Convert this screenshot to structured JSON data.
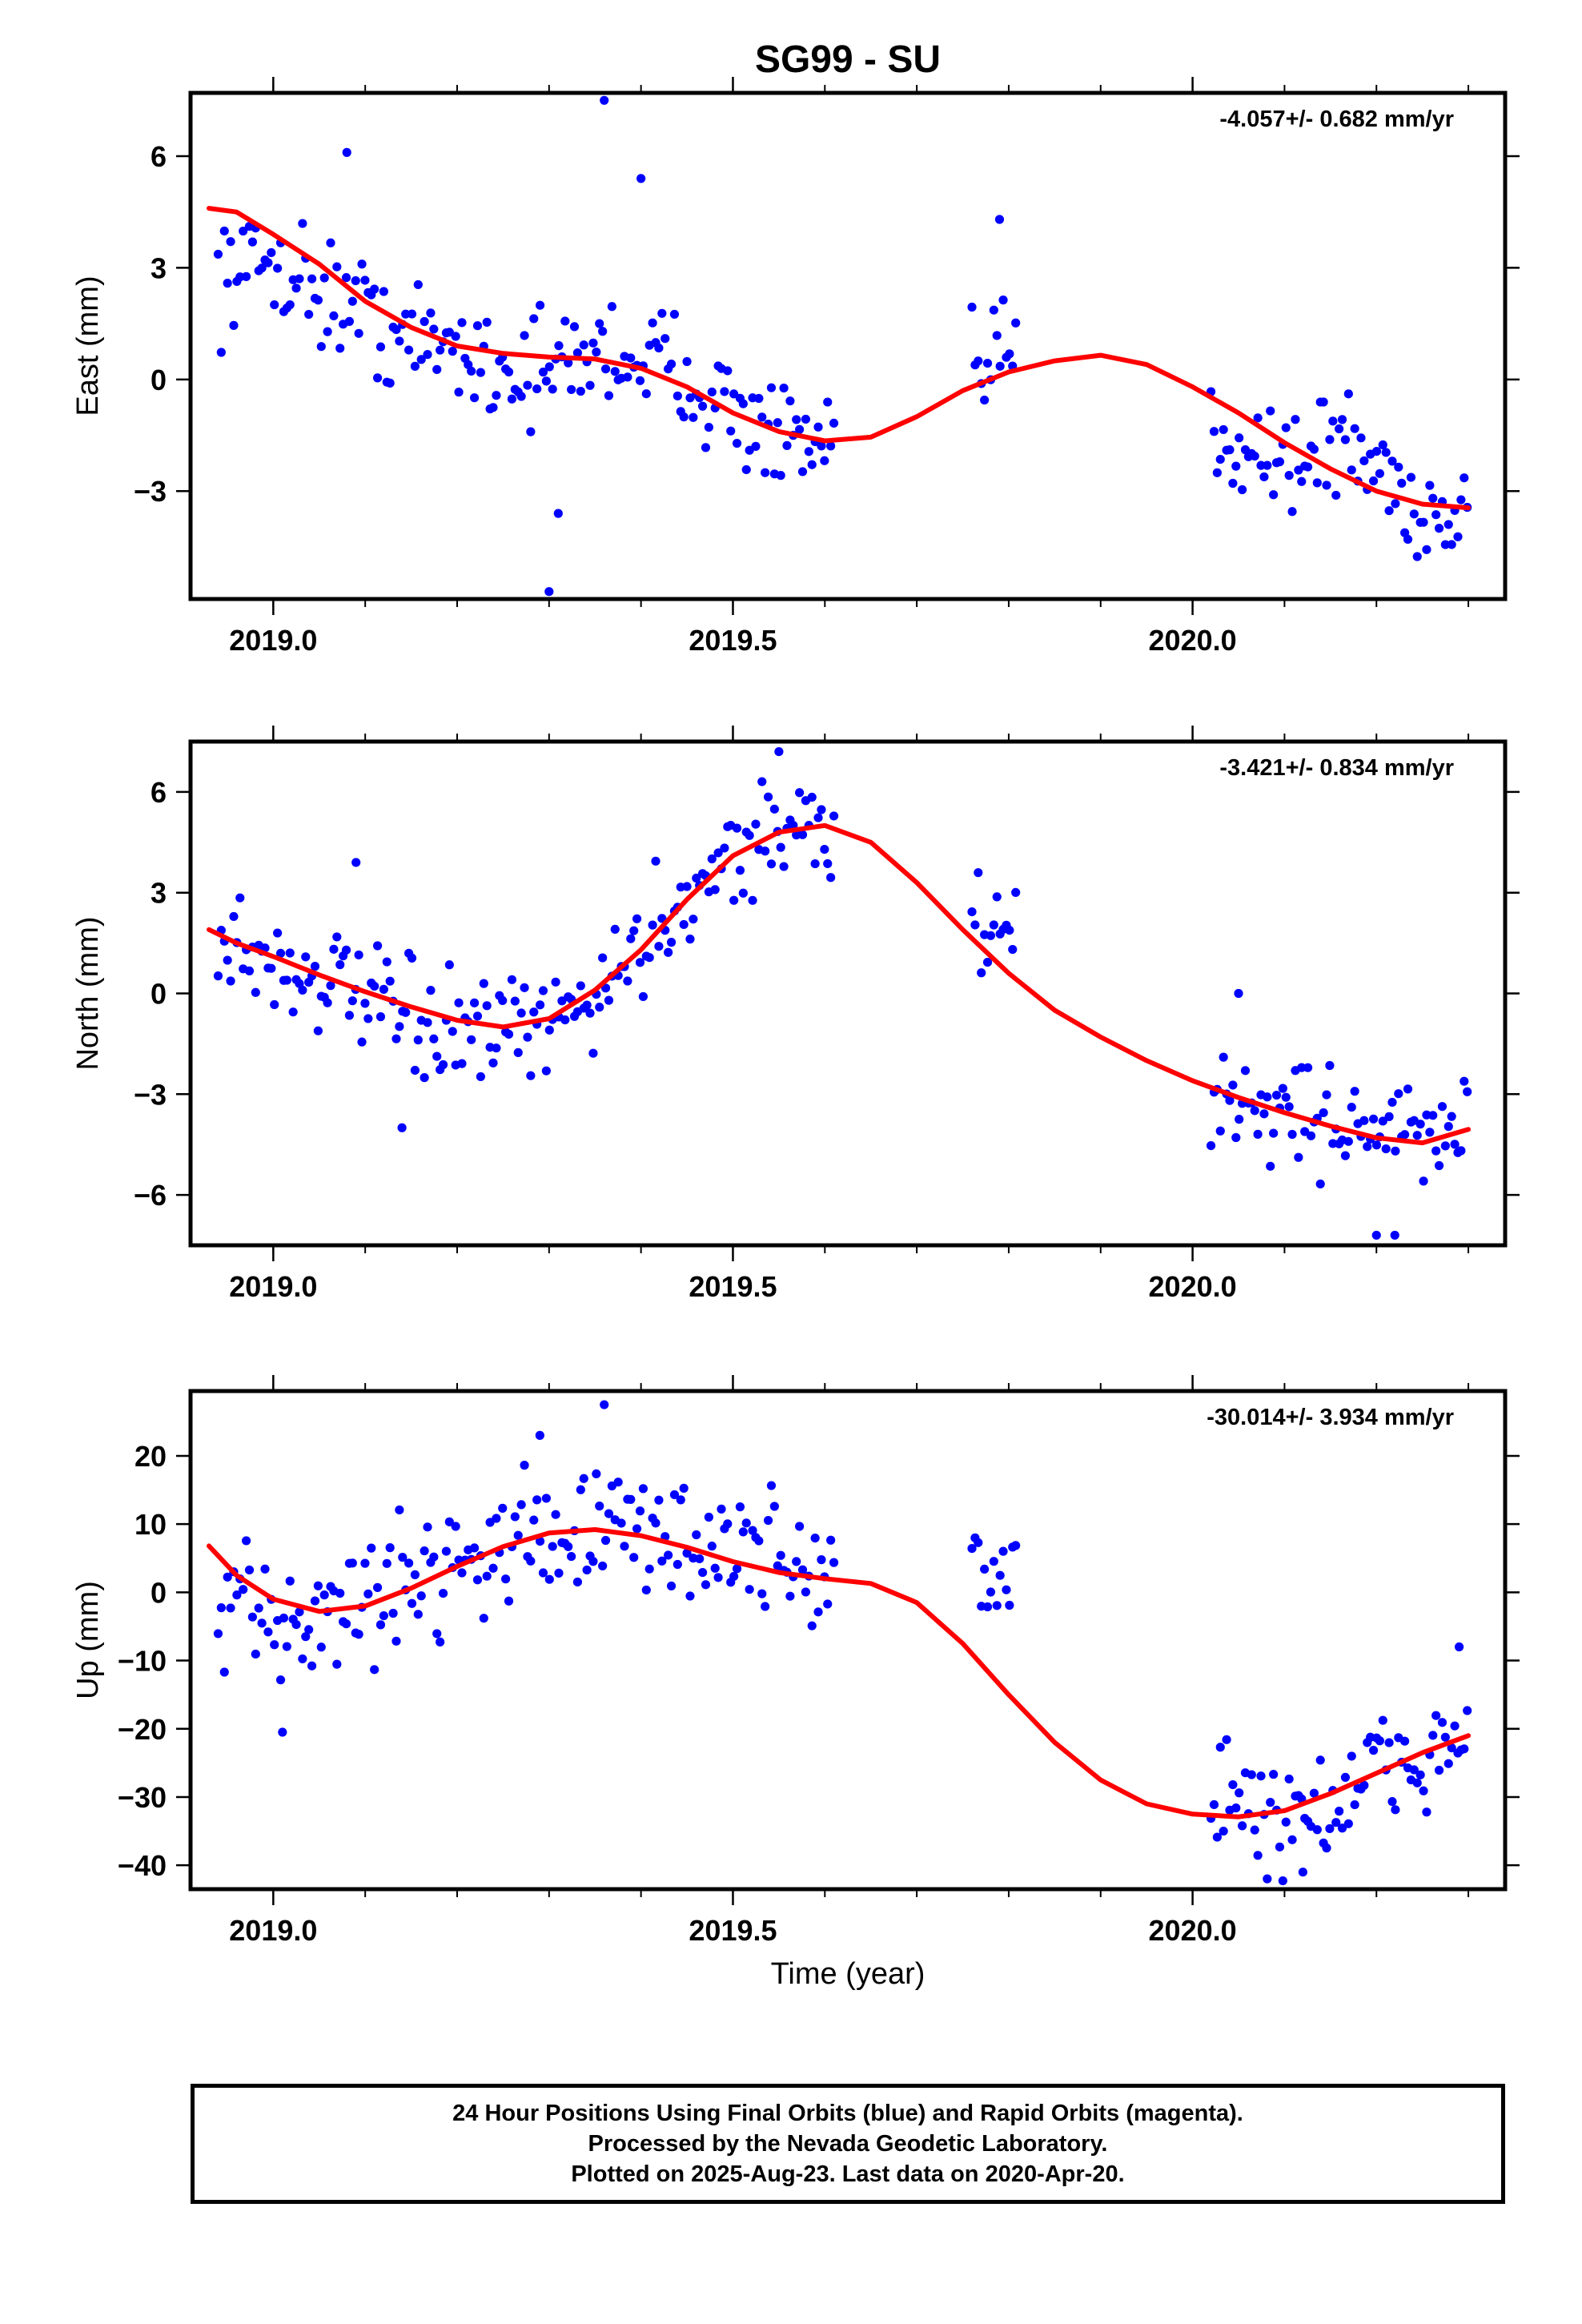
{
  "figure": {
    "title": "SG99 - SU",
    "xlabel": "Time (year)"
  },
  "colors": {
    "data_points": "#0000ff",
    "fit_line": "#ff0000",
    "axes": "#000000"
  },
  "caption": {
    "line1": "24 Hour Positions Using Final Orbits (blue) and Rapid Orbits (magenta).",
    "line2": "Processed by the Nevada Geodetic Laboratory.",
    "line3": "Plotted on 2025-Aug-23. Last data on 2020-Apr-20."
  },
  "chart_data": [
    {
      "type": "scatter",
      "name": "east",
      "ylabel": "East (mm)",
      "rate_label": "-4.057+/- 0.682 mm/yr",
      "xlim": [
        2018.91,
        2020.34
      ],
      "ylim": [
        -5.9,
        7.7
      ],
      "xticks": [
        2019.0,
        2019.5,
        2020.0
      ],
      "xticklabels": [
        "2019.0",
        "2019.5",
        "2020.0"
      ],
      "yticks": [
        -3,
        0,
        3,
        6
      ],
      "yticklabels": [
        "−3",
        "0",
        "3",
        "6"
      ],
      "anchors": [
        [
          2018.94,
          2.8
        ],
        [
          2019.0,
          3.2
        ],
        [
          2019.05,
          2.4
        ],
        [
          2019.1,
          1.8
        ],
        [
          2019.15,
          1.0
        ],
        [
          2019.2,
          0.9
        ],
        [
          2019.25,
          0.3
        ],
        [
          2019.3,
          0.2
        ],
        [
          2019.35,
          0.8
        ],
        [
          2019.4,
          0.6
        ],
        [
          2019.45,
          0.2
        ],
        [
          2019.5,
          -0.9
        ],
        [
          2019.55,
          -1.6
        ],
        [
          2019.6,
          -2.1
        ],
        [
          2019.76,
          0.0
        ],
        [
          2019.8,
          0.8
        ],
        [
          2020.02,
          -1.3
        ],
        [
          2020.08,
          -1.9
        ],
        [
          2020.12,
          -2.2
        ],
        [
          2020.16,
          -1.6
        ],
        [
          2020.2,
          -2.4
        ],
        [
          2020.25,
          -3.6
        ],
        [
          2020.3,
          -3.7
        ]
      ],
      "segments": [
        [
          2018.94,
          2019.61
        ],
        [
          2019.76,
          2019.81
        ],
        [
          2020.02,
          2020.3
        ]
      ],
      "spread": 1.3,
      "outliers": [
        [
          2019.3,
          -5.7
        ],
        [
          2019.36,
          7.5
        ],
        [
          2019.4,
          5.4
        ],
        [
          2019.08,
          6.1
        ],
        [
          2019.31,
          -3.6
        ],
        [
          2019.79,
          4.3
        ]
      ],
      "fit": [
        [
          2018.93,
          4.6
        ],
        [
          2018.96,
          4.5
        ],
        [
          2019.0,
          3.9
        ],
        [
          2019.05,
          3.1
        ],
        [
          2019.1,
          2.1
        ],
        [
          2019.15,
          1.4
        ],
        [
          2019.2,
          0.9
        ],
        [
          2019.25,
          0.7
        ],
        [
          2019.3,
          0.6
        ],
        [
          2019.35,
          0.55
        ],
        [
          2019.4,
          0.3
        ],
        [
          2019.45,
          -0.2
        ],
        [
          2019.5,
          -0.9
        ],
        [
          2019.55,
          -1.4
        ],
        [
          2019.6,
          -1.65
        ],
        [
          2019.65,
          -1.55
        ],
        [
          2019.7,
          -1.0
        ],
        [
          2019.75,
          -0.3
        ],
        [
          2019.8,
          0.2
        ],
        [
          2019.85,
          0.5
        ],
        [
          2019.9,
          0.65
        ],
        [
          2019.95,
          0.4
        ],
        [
          2020.0,
          -0.2
        ],
        [
          2020.05,
          -0.9
        ],
        [
          2020.1,
          -1.7
        ],
        [
          2020.15,
          -2.4
        ],
        [
          2020.2,
          -3.0
        ],
        [
          2020.25,
          -3.35
        ],
        [
          2020.3,
          -3.45
        ]
      ]
    },
    {
      "type": "scatter",
      "name": "north",
      "ylabel": "North (mm)",
      "rate_label": "-3.421+/- 0.834 mm/yr",
      "xlim": [
        2018.91,
        2020.34
      ],
      "ylim": [
        -7.5,
        7.5
      ],
      "xticks": [
        2019.0,
        2019.5,
        2020.0
      ],
      "xticklabels": [
        "2019.0",
        "2019.5",
        "2020.0"
      ],
      "yticks": [
        -6,
        -3,
        0,
        3,
        6
      ],
      "yticklabels": [
        "−6",
        "−3",
        "0",
        "3",
        "6"
      ],
      "anchors": [
        [
          2018.94,
          1.8
        ],
        [
          2019.0,
          0.8
        ],
        [
          2019.05,
          0.5
        ],
        [
          2019.1,
          -0.2
        ],
        [
          2019.15,
          -0.9
        ],
        [
          2019.2,
          -1.2
        ],
        [
          2019.25,
          -1.3
        ],
        [
          2019.3,
          -1.0
        ],
        [
          2019.35,
          0.0
        ],
        [
          2019.4,
          1.4
        ],
        [
          2019.45,
          3.0
        ],
        [
          2019.5,
          4.2
        ],
        [
          2019.55,
          4.9
        ],
        [
          2019.6,
          4.8
        ],
        [
          2019.76,
          2.0
        ],
        [
          2019.8,
          1.5
        ],
        [
          2020.02,
          -3.0
        ],
        [
          2020.08,
          -3.4
        ],
        [
          2020.12,
          -3.6
        ],
        [
          2020.16,
          -3.8
        ],
        [
          2020.2,
          -3.9
        ],
        [
          2020.25,
          -4.4
        ],
        [
          2020.3,
          -4.0
        ]
      ],
      "segments": [
        [
          2018.94,
          2019.61
        ],
        [
          2019.76,
          2019.81
        ],
        [
          2020.02,
          2020.3
        ]
      ],
      "spread": 1.4,
      "outliers": [
        [
          2019.09,
          3.9
        ],
        [
          2019.55,
          7.2
        ],
        [
          2020.2,
          -7.2
        ],
        [
          2020.22,
          -7.2
        ],
        [
          2019.14,
          -4.0
        ],
        [
          2020.05,
          0.0
        ]
      ],
      "fit": [
        [
          2018.93,
          1.9
        ],
        [
          2018.96,
          1.5
        ],
        [
          2019.0,
          1.1
        ],
        [
          2019.05,
          0.55
        ],
        [
          2019.1,
          0.05
        ],
        [
          2019.15,
          -0.4
        ],
        [
          2019.2,
          -0.8
        ],
        [
          2019.25,
          -1.0
        ],
        [
          2019.3,
          -0.75
        ],
        [
          2019.35,
          0.1
        ],
        [
          2019.4,
          1.3
        ],
        [
          2019.45,
          2.8
        ],
        [
          2019.5,
          4.1
        ],
        [
          2019.55,
          4.8
        ],
        [
          2019.6,
          5.0
        ],
        [
          2019.65,
          4.5
        ],
        [
          2019.7,
          3.3
        ],
        [
          2019.75,
          1.9
        ],
        [
          2019.8,
          0.6
        ],
        [
          2019.85,
          -0.5
        ],
        [
          2019.9,
          -1.3
        ],
        [
          2019.95,
          -2.0
        ],
        [
          2020.0,
          -2.6
        ],
        [
          2020.05,
          -3.1
        ],
        [
          2020.1,
          -3.55
        ],
        [
          2020.15,
          -3.95
        ],
        [
          2020.2,
          -4.3
        ],
        [
          2020.25,
          -4.45
        ],
        [
          2020.3,
          -4.05
        ]
      ]
    },
    {
      "type": "scatter",
      "name": "up",
      "ylabel": "Up (mm)",
      "rate_label": "-30.014+/- 3.934 mm/yr",
      "xlim": [
        2018.91,
        2020.34
      ],
      "ylim": [
        -43.5,
        29.5
      ],
      "xticks": [
        2019.0,
        2019.5,
        2020.0
      ],
      "xticklabels": [
        "2019.0",
        "2019.5",
        "2020.0"
      ],
      "yticks": [
        -40,
        -30,
        -20,
        -10,
        0,
        10,
        20
      ],
      "yticklabels": [
        "−40",
        "−30",
        "−20",
        "−10",
        "0",
        "10",
        "20"
      ],
      "anchors": [
        [
          2018.94,
          -4.0
        ],
        [
          2019.0,
          -3.5
        ],
        [
          2019.05,
          -4.0
        ],
        [
          2019.1,
          -1.0
        ],
        [
          2019.15,
          2.0
        ],
        [
          2019.2,
          5.0
        ],
        [
          2019.25,
          7.0
        ],
        [
          2019.3,
          9.0
        ],
        [
          2019.35,
          9.0
        ],
        [
          2019.4,
          8.0
        ],
        [
          2019.45,
          8.0
        ],
        [
          2019.5,
          6.0
        ],
        [
          2019.55,
          5.0
        ],
        [
          2019.6,
          3.0
        ],
        [
          2019.76,
          3.0
        ],
        [
          2019.8,
          2.0
        ],
        [
          2020.02,
          -29.0
        ],
        [
          2020.08,
          -33.0
        ],
        [
          2020.12,
          -32.0
        ],
        [
          2020.16,
          -31.0
        ],
        [
          2020.2,
          -27.0
        ],
        [
          2020.25,
          -24.0
        ],
        [
          2020.3,
          -22.0
        ]
      ],
      "segments": [
        [
          2018.94,
          2019.61
        ],
        [
          2019.76,
          2019.81
        ],
        [
          2020.02,
          2020.3
        ]
      ],
      "spread": 8.0,
      "outliers": [
        [
          2019.36,
          27.5
        ],
        [
          2019.29,
          23.0
        ],
        [
          2019.01,
          -20.5
        ],
        [
          2020.29,
          -8.0
        ],
        [
          2020.12,
          -41.0
        ]
      ],
      "fit": [
        [
          2018.93,
          6.8
        ],
        [
          2018.96,
          2.5
        ],
        [
          2019.0,
          -1.0
        ],
        [
          2019.05,
          -2.8
        ],
        [
          2019.1,
          -2.0
        ],
        [
          2019.15,
          0.6
        ],
        [
          2019.2,
          3.8
        ],
        [
          2019.25,
          6.7
        ],
        [
          2019.3,
          8.7
        ],
        [
          2019.35,
          9.2
        ],
        [
          2019.4,
          8.3
        ],
        [
          2019.45,
          6.6
        ],
        [
          2019.5,
          4.5
        ],
        [
          2019.55,
          2.9
        ],
        [
          2019.6,
          2.0
        ],
        [
          2019.65,
          1.3
        ],
        [
          2019.7,
          -1.5
        ],
        [
          2019.75,
          -7.5
        ],
        [
          2019.8,
          -15.0
        ],
        [
          2019.85,
          -22.0
        ],
        [
          2019.9,
          -27.5
        ],
        [
          2019.95,
          -31.0
        ],
        [
          2020.0,
          -32.5
        ],
        [
          2020.05,
          -32.9
        ],
        [
          2020.1,
          -32.0
        ],
        [
          2020.15,
          -29.5
        ],
        [
          2020.2,
          -26.5
        ],
        [
          2020.25,
          -23.5
        ],
        [
          2020.3,
          -21.0
        ]
      ]
    }
  ]
}
